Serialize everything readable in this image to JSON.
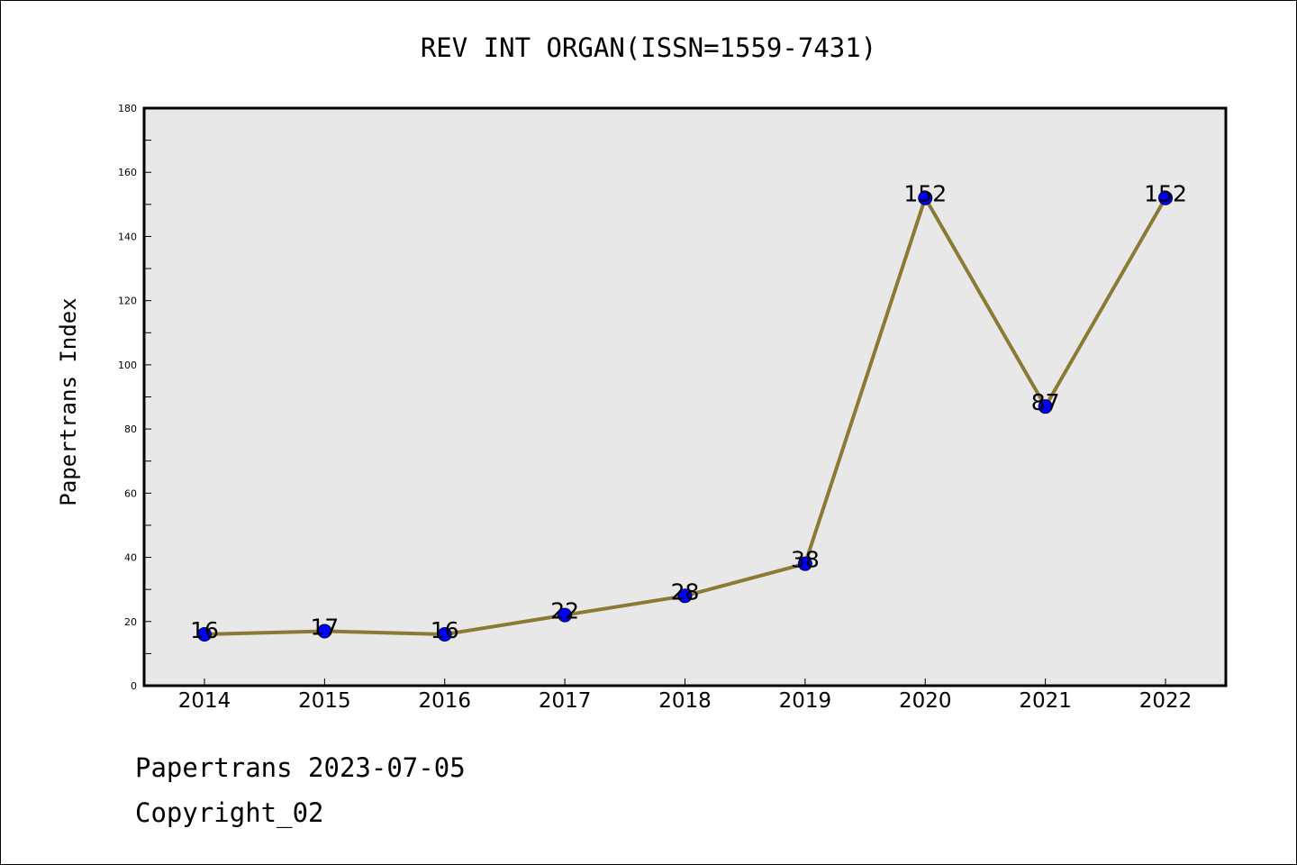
{
  "chart_data": {
    "type": "line",
    "title": "REV INT ORGAN(ISSN=1559-7431)",
    "xlabel": "",
    "ylabel": "Papertrans Index",
    "categories": [
      "2014",
      "2015",
      "2016",
      "2017",
      "2018",
      "2019",
      "2020",
      "2021",
      "2022"
    ],
    "series": [
      {
        "values": [
          16,
          17,
          16,
          22,
          28,
          38,
          152,
          87,
          152
        ],
        "data_labels": [
          "16",
          "17",
          "16",
          "22",
          "28",
          "38",
          "152",
          "87",
          "152"
        ]
      }
    ],
    "ylim": [
      0,
      180
    ],
    "yticks": [
      0,
      20,
      40,
      60,
      80,
      100,
      120,
      140,
      160,
      180
    ],
    "ytick_labels": [
      "0",
      "20",
      "40",
      "60",
      "80",
      "100",
      "120",
      "140",
      "160",
      "180"
    ],
    "grid": false,
    "line_color": "#8b7a35",
    "marker_color": "#0000ff",
    "plot_background": "#e8e8e8"
  },
  "footer": {
    "date_text": "Papertrans 2023-07-05",
    "copyright_text": "Copyright_02"
  }
}
